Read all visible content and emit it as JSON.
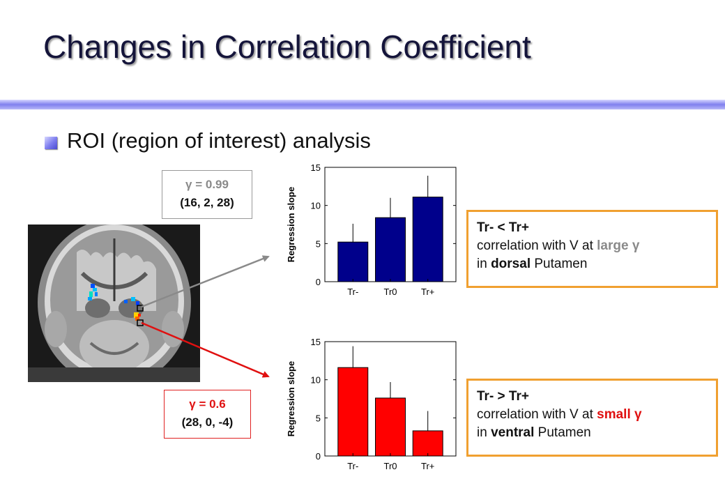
{
  "slide": {
    "title": "Changes in Correlation Coefficient",
    "bullet": "ROI (region of interest) analysis"
  },
  "roi_top": {
    "gamma": "γ = 0.99",
    "coords": "(16, 2, 28)"
  },
  "roi_bottom": {
    "gamma": "γ = 0.6",
    "coords": "(28, 0, -4)"
  },
  "callout_top": {
    "heading": "Tr- < Tr+",
    "line1_pre": "correlation with V at ",
    "line1_emph": "large γ",
    "line2_pre": "in ",
    "line2_emph": "dorsal",
    "line2_post": " Putamen"
  },
  "callout_bottom": {
    "heading": "Tr- > Tr+",
    "line1_pre": "correlation with V at ",
    "line1_emph": "small γ",
    "line2_pre": "in ",
    "line2_emph": "ventral",
    "line2_post": " Putamen"
  },
  "colors": {
    "accent_grey": "#8a8a8a",
    "accent_red": "#e01010",
    "callout_border": "#f0a030"
  },
  "chart_data": [
    {
      "type": "bar",
      "categories": [
        "Tr-",
        "Tr0",
        "Tr+"
      ],
      "values": [
        5.2,
        8.4,
        11.1
      ],
      "errors": [
        2.4,
        2.6,
        2.8
      ],
      "ylabel": "Regression slope",
      "ylim": [
        0,
        15
      ],
      "yticks": [
        0,
        5,
        10,
        15
      ],
      "bar_color": "#00008b"
    },
    {
      "type": "bar",
      "categories": [
        "Tr-",
        "Tr0",
        "Tr+"
      ],
      "values": [
        11.6,
        7.6,
        3.3
      ],
      "errors": [
        2.8,
        2.1,
        2.6
      ],
      "ylabel": "Regression slope",
      "ylim": [
        0,
        15
      ],
      "yticks": [
        0,
        5,
        10,
        15
      ],
      "bar_color": "#ff0000"
    }
  ]
}
